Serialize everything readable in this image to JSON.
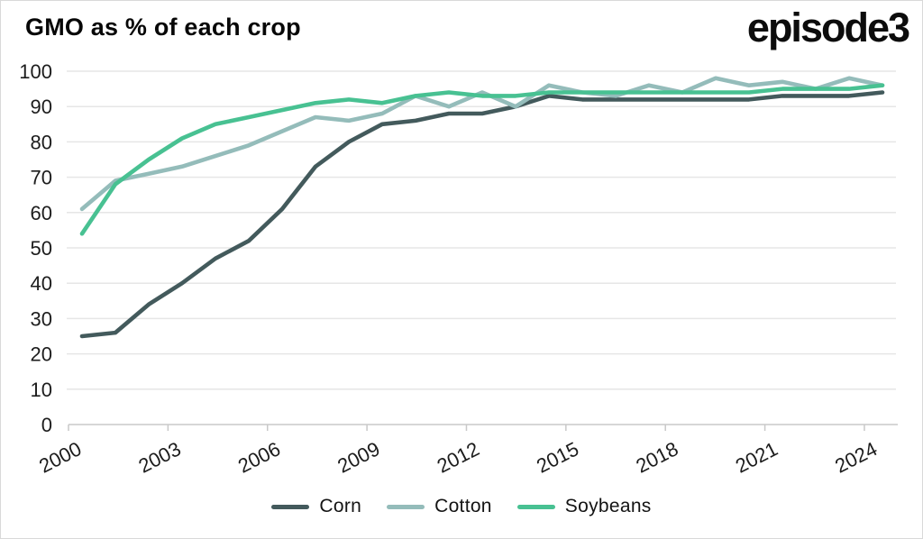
{
  "page": {
    "title": "GMO as % of each crop",
    "brand": "episode3"
  },
  "colors": {
    "corn": "#435a5c",
    "cotton": "#94bcba",
    "soybeans": "#48c192",
    "grid": "#e6e6e6",
    "axis": "#c9c9c9",
    "tick_text": "#1c1c1c"
  },
  "chart_data": {
    "type": "line",
    "title": "GMO as % of each crop",
    "x": [
      2000,
      2001,
      2002,
      2003,
      2004,
      2005,
      2006,
      2007,
      2008,
      2009,
      2010,
      2011,
      2012,
      2013,
      2014,
      2015,
      2016,
      2017,
      2018,
      2019,
      2020,
      2021,
      2022,
      2023,
      2024
    ],
    "series": [
      {
        "name": "Corn",
        "color": "#435a5c",
        "values": [
          25,
          26,
          34,
          40,
          47,
          52,
          61,
          73,
          80,
          85,
          86,
          88,
          88,
          90,
          93,
          92,
          92,
          92,
          92,
          92,
          92,
          93,
          93,
          93,
          94
        ]
      },
      {
        "name": "Cotton",
        "color": "#94bcba",
        "values": [
          61,
          69,
          71,
          73,
          76,
          79,
          83,
          87,
          86,
          88,
          93,
          90,
          94,
          90,
          96,
          94,
          93,
          96,
          94,
          98,
          96,
          97,
          95,
          98,
          96
        ]
      },
      {
        "name": "Soybeans",
        "color": "#48c192",
        "values": [
          54,
          68,
          75,
          81,
          85,
          87,
          89,
          91,
          92,
          91,
          93,
          94,
          93,
          93,
          94,
          94,
          94,
          94,
          94,
          94,
          94,
          95,
          95,
          95,
          96
        ]
      }
    ],
    "xlabel": "",
    "ylabel": "",
    "ylim": [
      0,
      100
    ],
    "y_ticks": [
      0,
      10,
      20,
      30,
      40,
      50,
      60,
      70,
      80,
      90,
      100
    ],
    "x_ticks": [
      2000,
      2003,
      2006,
      2009,
      2012,
      2015,
      2018,
      2021,
      2024
    ],
    "grid": "horizontal",
    "legend_position": "bottom"
  }
}
